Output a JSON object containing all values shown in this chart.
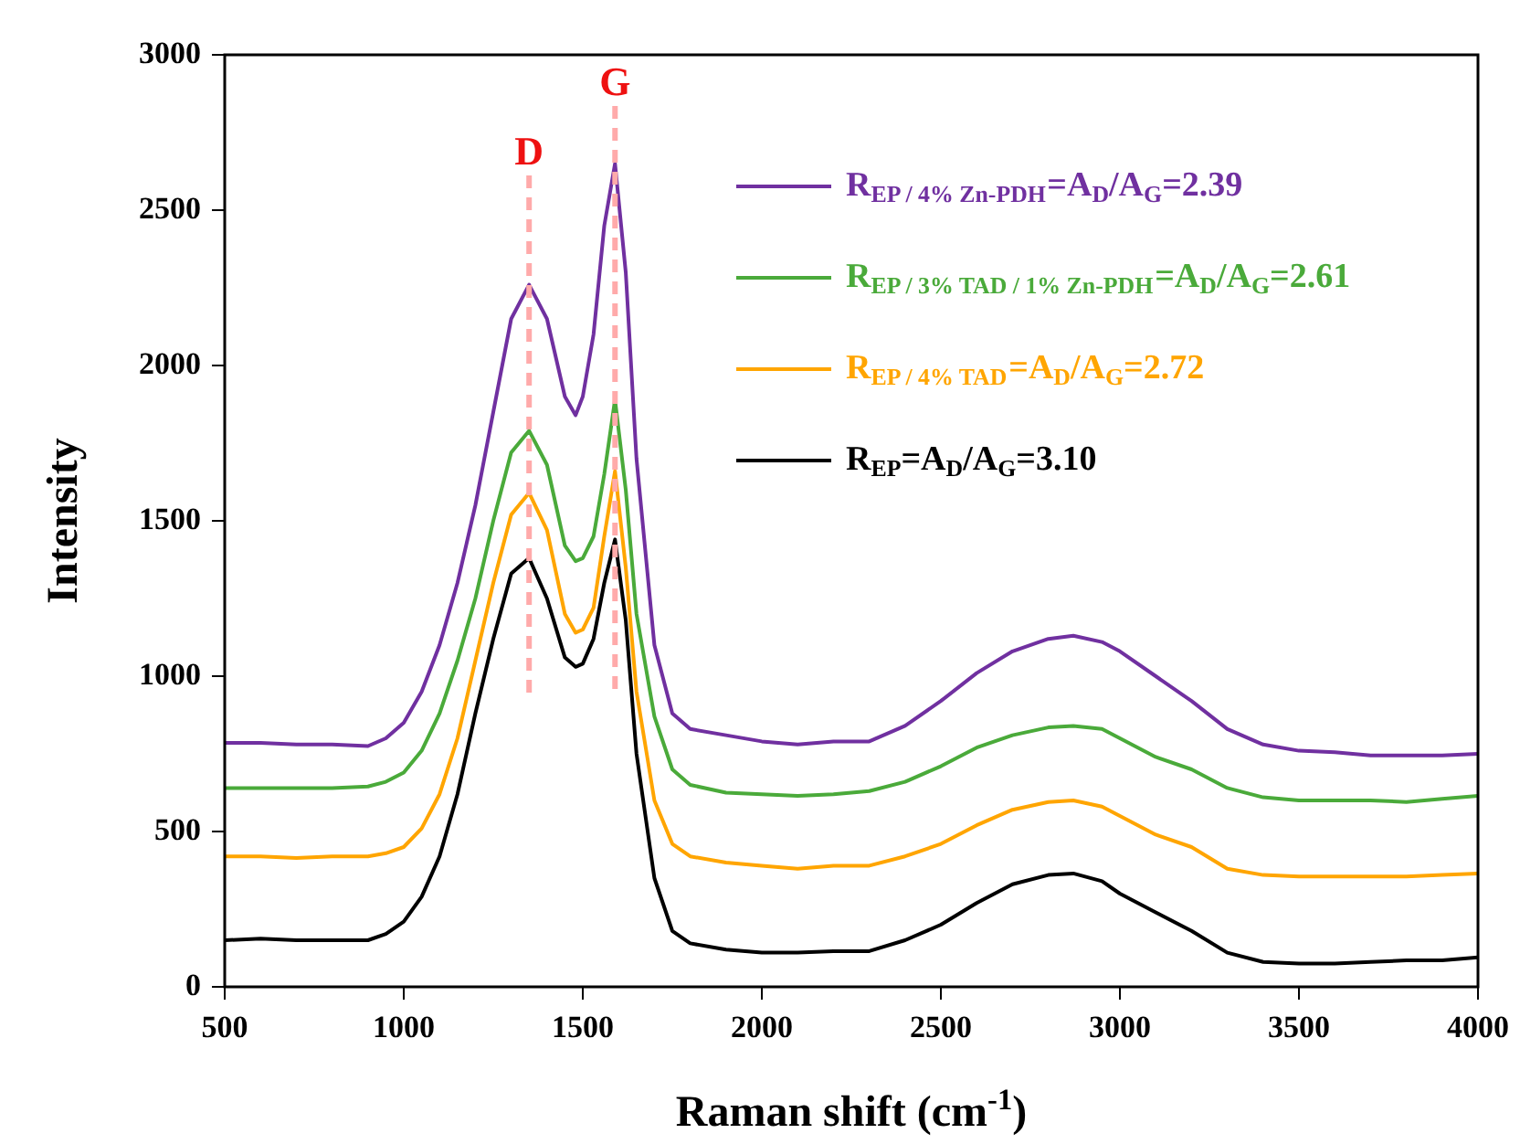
{
  "chart_data": {
    "type": "line",
    "xlabel": "Raman shift (cm$^{-1}$)",
    "ylabel": "Intensity",
    "x": [
      500,
      600,
      700,
      800,
      900,
      950,
      1000,
      1050,
      1100,
      1150,
      1200,
      1250,
      1300,
      1350,
      1400,
      1450,
      1480,
      1500,
      1530,
      1560,
      1590,
      1620,
      1650,
      1700,
      1750,
      1800,
      1900,
      2000,
      2100,
      2200,
      2300,
      2400,
      2500,
      2600,
      2700,
      2800,
      2870,
      2950,
      3000,
      3100,
      3200,
      3300,
      3400,
      3500,
      3600,
      3700,
      3800,
      3900,
      4000
    ],
    "series": [
      {
        "name": "R$_{EP / 4% Zn-PDH}$=A$_{D}$/A$_{G}$=2.39",
        "color": "#7030a0",
        "values": [
          785,
          785,
          780,
          780,
          775,
          800,
          850,
          950,
          1100,
          1300,
          1550,
          1850,
          2150,
          2260,
          2150,
          1900,
          1840,
          1900,
          2100,
          2450,
          2650,
          2300,
          1700,
          1100,
          880,
          830,
          810,
          790,
          780,
          790,
          790,
          840,
          920,
          1010,
          1080,
          1120,
          1130,
          1110,
          1080,
          1000,
          920,
          830,
          780,
          760,
          755,
          745,
          745,
          745,
          750
        ]
      },
      {
        "name": "R$_{EP / 3% TAD / 1% Zn-PDH}$=A$_{D}$/A$_{G}$=2.61",
        "color": "#4aaa3a",
        "values": [
          640,
          640,
          640,
          640,
          645,
          660,
          690,
          760,
          880,
          1050,
          1250,
          1500,
          1720,
          1790,
          1680,
          1420,
          1370,
          1380,
          1450,
          1650,
          1890,
          1600,
          1200,
          870,
          700,
          650,
          625,
          620,
          615,
          620,
          630,
          660,
          710,
          770,
          810,
          835,
          840,
          830,
          800,
          740,
          700,
          640,
          610,
          600,
          600,
          600,
          595,
          605,
          615
        ]
      },
      {
        "name": "R$_{EP / 4% TAD}$=A$_{D}$/A$_{G}$=2.72",
        "color": "#ffa500",
        "values": [
          420,
          420,
          415,
          420,
          420,
          430,
          450,
          510,
          620,
          800,
          1050,
          1300,
          1520,
          1590,
          1470,
          1200,
          1140,
          1150,
          1220,
          1450,
          1660,
          1350,
          950,
          600,
          460,
          420,
          400,
          390,
          380,
          390,
          390,
          420,
          460,
          520,
          570,
          595,
          600,
          580,
          550,
          490,
          450,
          380,
          360,
          355,
          355,
          355,
          355,
          360,
          365
        ]
      },
      {
        "name": "R$_{EP}$=A$_{D}$/A$_{G}$=3.10",
        "color": "#000000",
        "values": [
          150,
          155,
          150,
          150,
          150,
          170,
          210,
          290,
          420,
          620,
          880,
          1120,
          1330,
          1380,
          1250,
          1060,
          1030,
          1040,
          1120,
          1300,
          1440,
          1180,
          750,
          350,
          180,
          140,
          120,
          110,
          110,
          115,
          115,
          150,
          200,
          270,
          330,
          360,
          365,
          340,
          300,
          240,
          180,
          110,
          80,
          75,
          75,
          80,
          85,
          85,
          95
        ]
      }
    ],
    "xlim": [
      500,
      4000
    ],
    "xticks": [
      500,
      1000,
      1500,
      2000,
      2500,
      3000,
      3500,
      4000
    ],
    "ylim": [
      0,
      3000
    ],
    "yticks": [
      0,
      500,
      1000,
      1500,
      2000,
      2500,
      3000
    ],
    "ref_lines": [
      {
        "axis": "x",
        "value": 1350,
        "label": "D",
        "color": "#ffaaaa",
        "line_style": "dashed"
      },
      {
        "axis": "x",
        "value": 1590,
        "label": "G",
        "color": "#ffaaaa",
        "line_style": "dashed"
      }
    ],
    "legend": "top right",
    "marker": "none",
    "line_style": "solid",
    "grid": false
  }
}
